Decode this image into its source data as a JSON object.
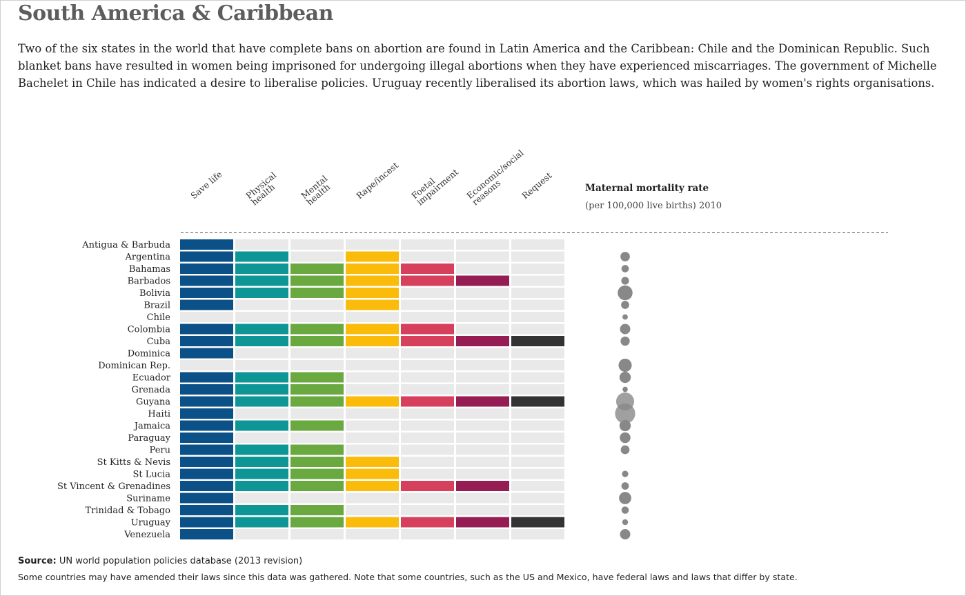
{
  "title": "South America & Caribbean",
  "intro": "Two of the six states in the world that have complete bans on abortion are found in Latin America and the Caribbean: Chile and the Dominican Republic. Such blanket bans have resulted in women being imprisoned for undergoing illegal abortions when they have experienced miscarriages. The government of Michelle Bachelet in Chile has indicated a desire to liberalise policies. Uruguay recently liberalised its abortion laws, which was hailed by women's rights organisations.",
  "legend": {
    "title": "Maternal mortality rate",
    "subtitle": "(per 100,000 live births) 2010"
  },
  "source_label": "Source:",
  "source_text": "UN world population policies database (2013 revision)",
  "footnote": "Some countries may have amended their laws since this data was gathered. Note that some countries, such as the US and Mexico, have federal laws and laws that differ by state.",
  "chart_data": {
    "type": "heatmap",
    "title": "South America & Caribbean",
    "columns": [
      {
        "label": [
          "Save life"
        ],
        "color": "#0b5087"
      },
      {
        "label": [
          "Physical",
          "health"
        ],
        "color": "#0d9695"
      },
      {
        "label": [
          "Mental",
          "health"
        ],
        "color": "#6aa840"
      },
      {
        "label": [
          "Rape/incest"
        ],
        "color": "#fbbb0b"
      },
      {
        "label": [
          "Foetal",
          "impairment"
        ],
        "color": "#d6405c"
      },
      {
        "label": [
          "Economic/social",
          "reasons"
        ],
        "color": "#951d53"
      },
      {
        "label": [
          "Request"
        ],
        "color": "#333333"
      }
    ],
    "empty_color": "#e9e9e9",
    "rows": [
      {
        "country": "Antigua & Barbuda",
        "grounds": [
          1,
          0,
          0,
          0,
          0,
          0,
          0
        ],
        "mmr": null
      },
      {
        "country": "Argentina",
        "grounds": [
          1,
          1,
          0,
          1,
          0,
          0,
          0
        ],
        "mmr": 77
      },
      {
        "country": "Bahamas",
        "grounds": [
          1,
          1,
          1,
          1,
          1,
          0,
          0
        ],
        "mmr": 47
      },
      {
        "country": "Barbados",
        "grounds": [
          1,
          1,
          1,
          1,
          1,
          1,
          0
        ],
        "mmr": 51
      },
      {
        "country": "Bolivia",
        "grounds": [
          1,
          1,
          1,
          1,
          0,
          0,
          0
        ],
        "mmr": 190
      },
      {
        "country": "Brazil",
        "grounds": [
          1,
          0,
          0,
          1,
          0,
          0,
          0
        ],
        "mmr": 56
      },
      {
        "country": "Chile",
        "grounds": [
          0,
          0,
          0,
          0,
          0,
          0,
          0
        ],
        "mmr": 25
      },
      {
        "country": "Colombia",
        "grounds": [
          1,
          1,
          1,
          1,
          1,
          0,
          0
        ],
        "mmr": 92
      },
      {
        "country": "Cuba",
        "grounds": [
          1,
          1,
          1,
          1,
          1,
          1,
          1
        ],
        "mmr": 73
      },
      {
        "country": "Dominica",
        "grounds": [
          1,
          0,
          0,
          0,
          0,
          0,
          0
        ],
        "mmr": null
      },
      {
        "country": "Dominican Rep.",
        "grounds": [
          0,
          0,
          0,
          0,
          0,
          0,
          0
        ],
        "mmr": 150
      },
      {
        "country": "Ecuador",
        "grounds": [
          1,
          1,
          1,
          0,
          0,
          0,
          0
        ],
        "mmr": 110
      },
      {
        "country": "Grenada",
        "grounds": [
          1,
          1,
          1,
          0,
          0,
          0,
          0
        ],
        "mmr": 24
      },
      {
        "country": "Guyana",
        "grounds": [
          1,
          1,
          1,
          1,
          1,
          1,
          1
        ],
        "mmr": 280
      },
      {
        "country": "Haiti",
        "grounds": [
          1,
          0,
          0,
          0,
          0,
          0,
          0
        ],
        "mmr": 350
      },
      {
        "country": "Jamaica",
        "grounds": [
          1,
          1,
          1,
          0,
          0,
          0,
          0
        ],
        "mmr": 110
      },
      {
        "country": "Paraguay",
        "grounds": [
          1,
          0,
          0,
          0,
          0,
          0,
          0
        ],
        "mmr": 99
      },
      {
        "country": "Peru",
        "grounds": [
          1,
          1,
          1,
          0,
          0,
          0,
          0
        ],
        "mmr": 67
      },
      {
        "country": "St Kitts & Nevis",
        "grounds": [
          1,
          1,
          1,
          1,
          0,
          0,
          0
        ],
        "mmr": null
      },
      {
        "country": "St Lucia",
        "grounds": [
          1,
          1,
          1,
          1,
          0,
          0,
          0
        ],
        "mmr": 35
      },
      {
        "country": "St Vincent & Grenadines",
        "grounds": [
          1,
          1,
          1,
          1,
          1,
          1,
          0
        ],
        "mmr": 48
      },
      {
        "country": "Suriname",
        "grounds": [
          1,
          0,
          0,
          0,
          0,
          0,
          0
        ],
        "mmr": 130
      },
      {
        "country": "Trinidad & Tobago",
        "grounds": [
          1,
          1,
          1,
          0,
          0,
          0,
          0
        ],
        "mmr": 46
      },
      {
        "country": "Uruguay",
        "grounds": [
          1,
          1,
          1,
          1,
          1,
          1,
          1
        ],
        "mmr": 29
      },
      {
        "country": "Venezuela",
        "grounds": [
          1,
          0,
          0,
          0,
          0,
          0,
          0
        ],
        "mmr": 92
      }
    ],
    "bubble_color": "#888888"
  }
}
